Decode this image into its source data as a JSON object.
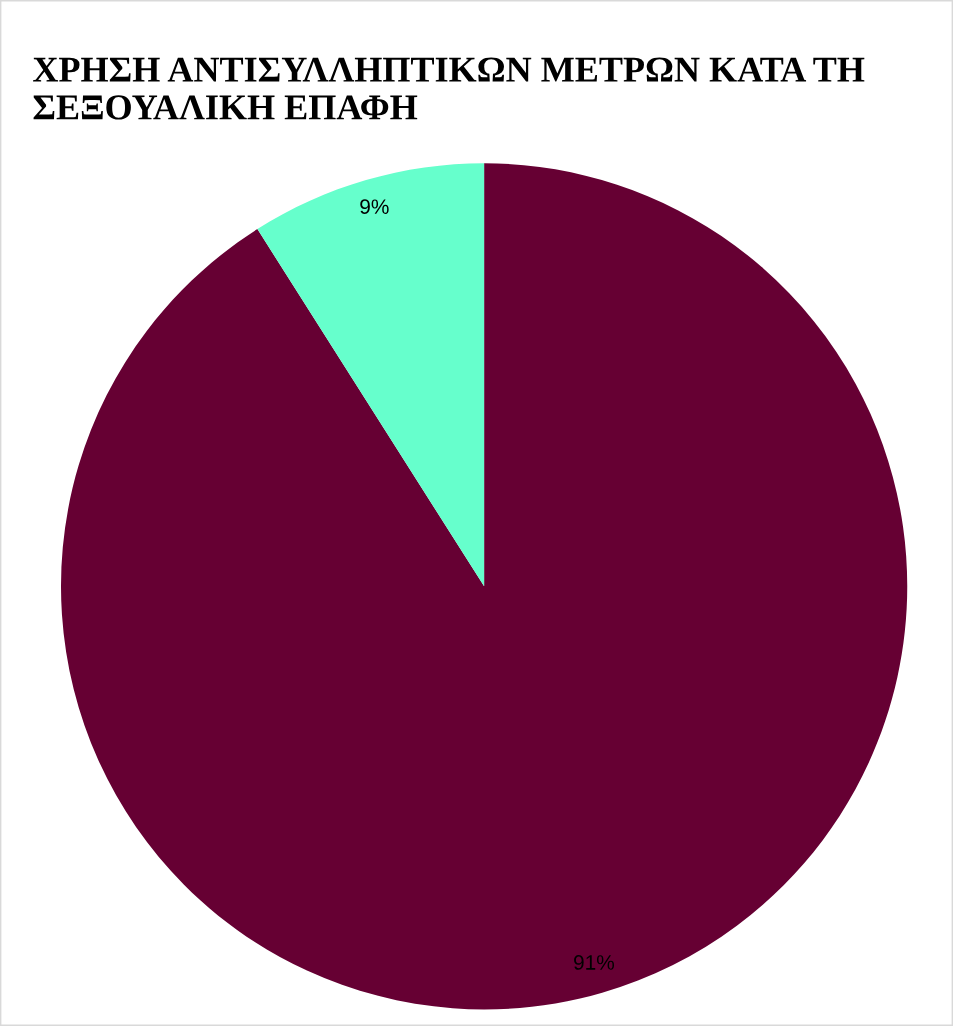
{
  "chart_data": {
    "type": "pie",
    "title": "ΧΡΗΣΗ ΑΝΤΙΣΥΛΛΗΠΤΙΚΩΝ ΜΕΤΡΩΝ ΚΑΤΑ ΤΗ ΣΕΞΟΥΑΛΙΚΗ ΕΠΑΦΗ",
    "categories": [
      null,
      null
    ],
    "values": [
      91,
      9
    ],
    "colors": [
      "#660033",
      "#66ffcc"
    ],
    "value_labels": [
      "91%",
      "9%"
    ]
  }
}
